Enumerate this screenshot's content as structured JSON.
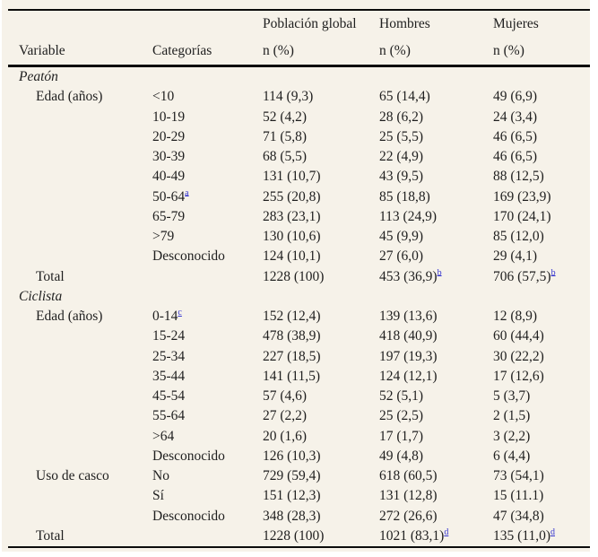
{
  "figure": {
    "background": "#f6f2e9",
    "text_color": "#1f1f1f",
    "link_color": "#3434ce",
    "rule_color": "#0c0c0c"
  },
  "table": {
    "header": {
      "variable": "Variable",
      "categorias": "Categorías",
      "groups": [
        "Población global",
        "Hombres",
        "Mujeres"
      ],
      "n_label": "n (%)"
    },
    "footnote_markers": [
      "a",
      "b",
      "c",
      "d"
    ],
    "rows": [
      {
        "kind": "section",
        "label": "Peatón"
      },
      {
        "kind": "data",
        "variable": "Edad (años)",
        "category": "<10",
        "cells": [
          {
            "t": "114 (9,3)"
          },
          {
            "t": "65 (14,4)"
          },
          {
            "t": "49 (6,9)"
          }
        ]
      },
      {
        "kind": "data",
        "variable": "",
        "category": "10-19",
        "cells": [
          {
            "t": "52 (4,2)"
          },
          {
            "t": "28 (6,2)"
          },
          {
            "t": "24 (3,4)"
          }
        ]
      },
      {
        "kind": "data",
        "variable": "",
        "category": "20-29",
        "cells": [
          {
            "t": "71 (5,8)"
          },
          {
            "t": "25 (5,5)"
          },
          {
            "t": "46 (6,5)"
          }
        ]
      },
      {
        "kind": "data",
        "variable": "",
        "category": "30-39",
        "cells": [
          {
            "t": "68 (5,5)"
          },
          {
            "t": "22 (4,9)"
          },
          {
            "t": "46 (6,5)"
          }
        ]
      },
      {
        "kind": "data",
        "variable": "",
        "category": "40-49",
        "cells": [
          {
            "t": "131 (10,7)"
          },
          {
            "t": "43 (9,5)"
          },
          {
            "t": "88 (12,5)"
          }
        ]
      },
      {
        "kind": "data",
        "variable": "",
        "category": "50-64",
        "cat_sup": "a",
        "cells": [
          {
            "t": "255 (20,8)"
          },
          {
            "t": "85 (18,8)"
          },
          {
            "t": "169 (23,9)"
          }
        ]
      },
      {
        "kind": "data",
        "variable": "",
        "category": "65-79",
        "cells": [
          {
            "t": "283 (23,1)"
          },
          {
            "t": "113 (24,9)"
          },
          {
            "t": "170 (24,1)"
          }
        ]
      },
      {
        "kind": "data",
        "variable": "",
        "category": ">79",
        "cells": [
          {
            "t": "130 (10,6)"
          },
          {
            "t": "45 (9,9)"
          },
          {
            "t": "85 (12,0)"
          }
        ]
      },
      {
        "kind": "data",
        "variable": "",
        "category": "Desconocido",
        "cells": [
          {
            "t": "124 (10,1)"
          },
          {
            "t": "27 (6,0)"
          },
          {
            "t": "29 (4,1)"
          }
        ]
      },
      {
        "kind": "total",
        "variable": "Total",
        "category": "",
        "cells": [
          {
            "t": "1228 (100)"
          },
          {
            "t": "453 (36,9)",
            "sup": "b"
          },
          {
            "t": "706 (57,5)",
            "sup": "b"
          }
        ]
      },
      {
        "kind": "section",
        "label": "Ciclista"
      },
      {
        "kind": "data",
        "variable": "Edad (años)",
        "category": "0-14",
        "cat_sup": "c",
        "cells": [
          {
            "t": "152 (12,4)"
          },
          {
            "t": "139 (13,6)"
          },
          {
            "t": "12 (8,9)"
          }
        ]
      },
      {
        "kind": "data",
        "variable": "",
        "category": "15-24",
        "cells": [
          {
            "t": "478 (38,9)"
          },
          {
            "t": "418 (40,9)"
          },
          {
            "t": "60 (44,4)"
          }
        ]
      },
      {
        "kind": "data",
        "variable": "",
        "category": "25-34",
        "cells": [
          {
            "t": "227 (18,5)"
          },
          {
            "t": "197 (19,3)"
          },
          {
            "t": "30 (22,2)"
          }
        ]
      },
      {
        "kind": "data",
        "variable": "",
        "category": "35-44",
        "cells": [
          {
            "t": "141 (11,5)"
          },
          {
            "t": "124 (12,1)"
          },
          {
            "t": "17 (12,6)"
          }
        ]
      },
      {
        "kind": "data",
        "variable": "",
        "category": "45-54",
        "cells": [
          {
            "t": "57 (4,6)"
          },
          {
            "t": "52 (5,1)"
          },
          {
            "t": "5 (3,7)"
          }
        ]
      },
      {
        "kind": "data",
        "variable": "",
        "category": "55-64",
        "cells": [
          {
            "t": "27 (2,2)"
          },
          {
            "t": "25 (2,5)"
          },
          {
            "t": "2 (1,5)"
          }
        ]
      },
      {
        "kind": "data",
        "variable": "",
        "category": ">64",
        "cells": [
          {
            "t": "20 (1,6)"
          },
          {
            "t": "17 (1,7)"
          },
          {
            "t": "3 (2,2)"
          }
        ]
      },
      {
        "kind": "data",
        "variable": "",
        "category": "Desconocido",
        "cells": [
          {
            "t": "126 (10,3)"
          },
          {
            "t": "49 (4,8)"
          },
          {
            "t": "6 (4,4)"
          }
        ]
      },
      {
        "kind": "data",
        "variable": "Uso de casco",
        "category": "No",
        "cells": [
          {
            "t": "729 (59,4)"
          },
          {
            "t": "618 (60,5)"
          },
          {
            "t": "73 (54,1)"
          }
        ]
      },
      {
        "kind": "data",
        "variable": "",
        "category": "Sí",
        "cells": [
          {
            "t": "151 (12,3)"
          },
          {
            "t": "131 (12,8)"
          },
          {
            "t": "15 (11.1)"
          }
        ]
      },
      {
        "kind": "data",
        "variable": "",
        "category": "Desconocido",
        "cells": [
          {
            "t": "348 (28,3)"
          },
          {
            "t": "272 (26,6)"
          },
          {
            "t": "47 (34,8)"
          }
        ]
      },
      {
        "kind": "total",
        "variable": "Total",
        "category": "",
        "cells": [
          {
            "t": "1228 (100)"
          },
          {
            "t": "1021 (83,1)",
            "sup": "d"
          },
          {
            "t": "135 (11,0)",
            "sup": "d"
          }
        ]
      }
    ]
  }
}
